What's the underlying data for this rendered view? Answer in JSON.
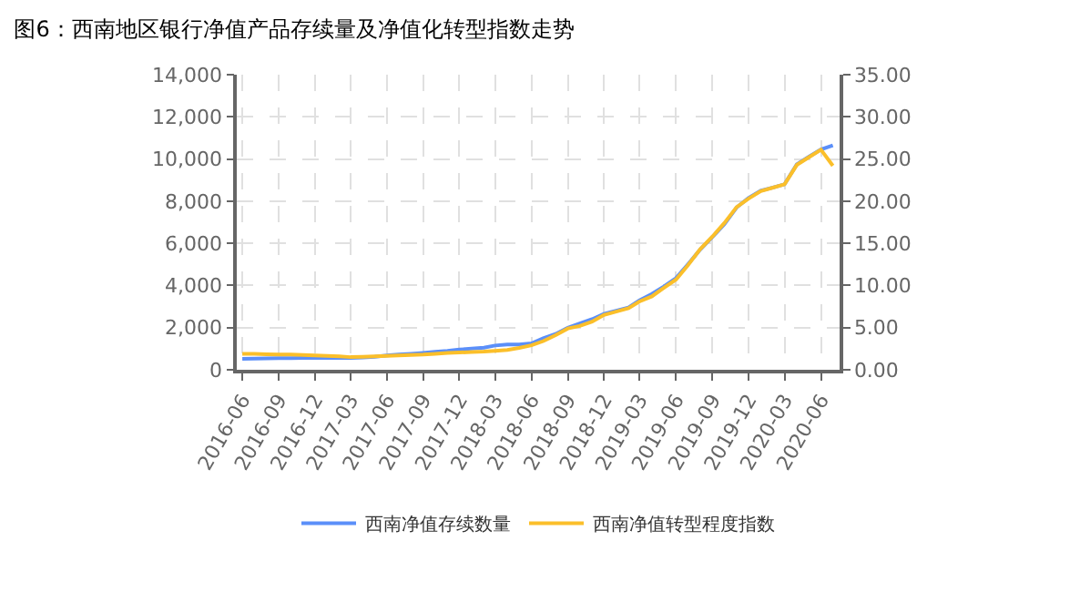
{
  "chart_data": {
    "type": "line",
    "title": "图6：西南地区银行净值产品存续量及净值化转型指数走势",
    "x": [
      "2016-06",
      "2016-07",
      "2016-08",
      "2016-09",
      "2016-10",
      "2016-11",
      "2016-12",
      "2017-01",
      "2017-02",
      "2017-03",
      "2017-04",
      "2017-05",
      "2017-06",
      "2017-07",
      "2017-08",
      "2017-09",
      "2017-10",
      "2017-11",
      "2017-12",
      "2018-01",
      "2018-02",
      "2018-03",
      "2018-04",
      "2018-05",
      "2018-06",
      "2018-07",
      "2018-08",
      "2018-09",
      "2018-10",
      "2018-11",
      "2018-12",
      "2019-01",
      "2019-02",
      "2019-03",
      "2019-04",
      "2019-05",
      "2019-06",
      "2019-07",
      "2019-08",
      "2019-09",
      "2019-10",
      "2019-11",
      "2019-12",
      "2020-01",
      "2020-02",
      "2020-03",
      "2020-04",
      "2020-05",
      "2020-06",
      "2020-07"
    ],
    "series": [
      {
        "name": "西南净值存续数量",
        "color": "#5b8ff9",
        "values": [
          520,
          530,
          540,
          550,
          550,
          560,
          560,
          560,
          560,
          560,
          580,
          620,
          680,
          720,
          760,
          800,
          850,
          900,
          960,
          1000,
          1050,
          1150,
          1200,
          1200,
          1250,
          1500,
          1700,
          2000,
          2200,
          2400,
          2650,
          2800,
          2950,
          3300,
          3600,
          3950,
          4350,
          5000,
          5700,
          6300,
          6900,
          7700,
          8150,
          8500,
          8650,
          8800,
          9750,
          10100,
          10450,
          10650
        ]
      },
      {
        "name": "西南净值转型程度指数",
        "color": "#fbbf2a",
        "axis": "y2",
        "values": [
          1.9,
          1.9,
          1.85,
          1.8,
          1.8,
          1.75,
          1.7,
          1.65,
          1.6,
          1.5,
          1.55,
          1.6,
          1.65,
          1.7,
          1.75,
          1.8,
          1.9,
          2.0,
          2.05,
          2.1,
          2.15,
          2.25,
          2.35,
          2.6,
          2.9,
          3.4,
          4.1,
          4.9,
          5.2,
          5.7,
          6.5,
          6.9,
          7.3,
          8.1,
          8.7,
          9.7,
          10.7,
          12.4,
          14.3,
          15.8,
          17.4,
          19.3,
          20.3,
          21.2,
          21.6,
          22.0,
          24.3,
          25.2,
          26.1,
          24.2
        ]
      }
    ],
    "xlim": [
      "2016-05-18",
      "2020-07-18"
    ],
    "xticks": [
      "2016-06",
      "2016-09",
      "2016-12",
      "2017-03",
      "2017-06",
      "2017-09",
      "2017-12",
      "2018-03",
      "2018-06",
      "2018-09",
      "2018-12",
      "2019-03",
      "2019-06",
      "2019-09",
      "2019-12",
      "2020-03",
      "2020-06"
    ],
    "ylim": [
      0,
      14000
    ],
    "yticks": [
      0,
      {
        "value": 2000,
        "label": "2,000"
      },
      {
        "value": 4000,
        "label": "4,000"
      },
      {
        "value": 6000,
        "label": "6,000"
      },
      {
        "value": 8000,
        "label": "8,000"
      },
      {
        "value": 10000,
        "label": "10,000"
      },
      {
        "value": 12000,
        "label": "12,000"
      },
      {
        "value": 14000,
        "label": "14,000"
      }
    ],
    "y2lim": [
      0,
      35
    ],
    "y2ticks": [
      {
        "value": 0,
        "label": "0.00"
      },
      {
        "value": 5,
        "label": "5.00"
      },
      {
        "value": 10,
        "label": "10.00"
      },
      {
        "value": 15,
        "label": "15.00"
      },
      {
        "value": 20,
        "label": "20.00"
      },
      {
        "value": 25,
        "label": "25.00"
      },
      {
        "value": 30,
        "label": "30.00"
      },
      {
        "value": 35,
        "label": "35.00"
      }
    ],
    "grid": true,
    "legend": "bottom",
    "marker": "none",
    "line_style": "solid"
  }
}
